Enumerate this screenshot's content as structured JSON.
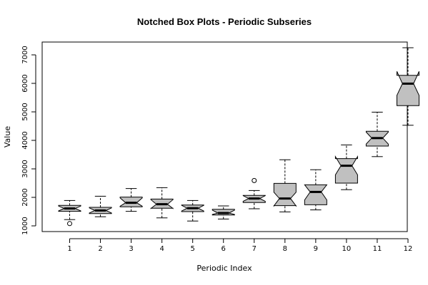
{
  "chart_data": {
    "type": "box",
    "title": "Notched Box Plots - Periodic Subseries",
    "xlabel": "Periodic Index",
    "ylabel": "Value",
    "categories": [
      "1",
      "2",
      "3",
      "4",
      "5",
      "6",
      "7",
      "8",
      "9",
      "10",
      "11",
      "12"
    ],
    "ylim": [
      800,
      7450
    ],
    "yticks": [
      1000,
      2000,
      3000,
      4000,
      5000,
      6000,
      7000
    ],
    "boxes": [
      {
        "label": "1",
        "whisker_low": 1220,
        "q1": 1510,
        "median": 1610,
        "q3": 1720,
        "whisker_high": 1890,
        "notch_low": 1525,
        "notch_high": 1695,
        "outliers": [
          1080
        ]
      },
      {
        "label": "2",
        "whisker_low": 1320,
        "q1": 1430,
        "median": 1540,
        "q3": 1650,
        "whisker_high": 2040,
        "notch_low": 1450,
        "notch_high": 1630,
        "outliers": []
      },
      {
        "label": "3",
        "whisker_low": 1510,
        "q1": 1670,
        "median": 1810,
        "q3": 2010,
        "whisker_high": 2310,
        "notch_low": 1690,
        "notch_high": 1980,
        "outliers": []
      },
      {
        "label": "4",
        "whisker_low": 1280,
        "q1": 1620,
        "median": 1760,
        "q3": 1940,
        "whisker_high": 2340,
        "notch_low": 1610,
        "notch_high": 1920,
        "outliers": []
      },
      {
        "label": "5",
        "whisker_low": 1170,
        "q1": 1500,
        "median": 1620,
        "q3": 1730,
        "whisker_high": 1890,
        "notch_low": 1520,
        "notch_high": 1720,
        "outliers": []
      },
      {
        "label": "6",
        "whisker_low": 1240,
        "q1": 1380,
        "median": 1450,
        "q3": 1580,
        "whisker_high": 1700,
        "notch_low": 1400,
        "notch_high": 1550,
        "outliers": []
      },
      {
        "label": "7",
        "whisker_low": 1600,
        "q1": 1820,
        "median": 1960,
        "q3": 2070,
        "whisker_high": 2240,
        "notch_low": 1860,
        "notch_high": 2060,
        "outliers": [
          2590
        ]
      },
      {
        "label": "8",
        "whisker_low": 1490,
        "q1": 1710,
        "median": 1960,
        "q3": 2490,
        "whisker_high": 3320,
        "notch_low": 1700,
        "notch_high": 2180,
        "outliers": []
      },
      {
        "label": "9",
        "whisker_low": 1560,
        "q1": 1740,
        "median": 2190,
        "q3": 2440,
        "whisker_high": 2970,
        "notch_low": 1910,
        "notch_high": 2440,
        "outliers": []
      },
      {
        "label": "10",
        "whisker_low": 2270,
        "q1": 2500,
        "median": 3110,
        "q3": 3360,
        "whisker_high": 3840,
        "notch_low": 2790,
        "notch_high": 3430,
        "outliers": []
      },
      {
        "label": "11",
        "whisker_low": 3430,
        "q1": 3800,
        "median": 4080,
        "q3": 4320,
        "whisker_high": 4990,
        "notch_low": 3870,
        "notch_high": 4290,
        "outliers": []
      },
      {
        "label": "12",
        "whisker_low": 4530,
        "q1": 5220,
        "median": 5990,
        "q3": 6280,
        "whisker_high": 7250,
        "notch_low": 5580,
        "notch_high": 6420,
        "outliers": []
      }
    ],
    "box_fill": "#c0c0c0",
    "line_color": "#000000",
    "grid": false,
    "legend": "none"
  }
}
